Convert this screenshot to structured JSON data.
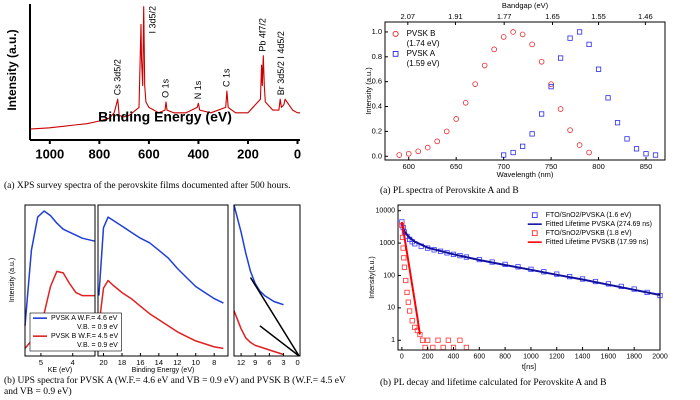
{
  "chart_data": [
    {
      "type": "line",
      "caption": "(a) XPS survey spectra of the perovskite films documented after 500 hours.",
      "x_label": "Binding Energy (eV)",
      "y_label": "Intensity (a.u.)",
      "xlim": [
        1080,
        -10
      ],
      "xticks": [
        1000,
        800,
        600,
        400,
        200,
        0
      ],
      "ylim": [
        0,
        100
      ],
      "x": [
        1080,
        1000,
        950,
        900,
        850,
        800,
        760,
        740,
        726,
        724,
        720,
        700,
        680,
        640,
        632,
        630,
        625,
        621,
        619,
        617,
        612,
        600,
        560,
        535,
        531,
        527,
        500,
        450,
        405,
        400,
        395,
        350,
        290,
        285,
        280,
        250,
        200,
        150,
        145,
        142,
        138,
        134,
        130,
        100,
        75,
        70,
        65,
        55,
        50,
        20,
        0,
        -10
      ],
      "series": [
        {
          "color": "#cc0000",
          "values": [
            8,
            9,
            10,
            11,
            12,
            14,
            16,
            20,
            30,
            26,
            18,
            17,
            18,
            24,
            85,
            60,
            40,
            98,
            70,
            40,
            28,
            24,
            20,
            22,
            28,
            22,
            20,
            20,
            24,
            27,
            22,
            20,
            24,
            36,
            24,
            20,
            20,
            30,
            55,
            40,
            62,
            40,
            28,
            22,
            22,
            30,
            24,
            26,
            30,
            22,
            20,
            20
          ]
        }
      ],
      "annotations": [
        {
          "text": "Cs 3d5/2",
          "x": 725
        },
        {
          "text": "I 3d5/2",
          "x": 619
        },
        {
          "text": "O 1s",
          "x": 531
        },
        {
          "text": "N 1s",
          "x": 400
        },
        {
          "text": "C 1s",
          "x": 285
        },
        {
          "text": "Pb 4f7/2",
          "x": 138
        },
        {
          "text": "Br 3d5/2 I 4d5/2",
          "x": 65
        }
      ]
    },
    {
      "type": "scatter",
      "caption": "(a) PL spectra of Perovskite A and B",
      "x_label": "Wavelength (nm)",
      "y_label": "Intensity (a.u.)",
      "x2_label": "Bandgap (eV)",
      "xlim": [
        575,
        870
      ],
      "xticks": [
        600,
        650,
        700,
        750,
        800,
        850
      ],
      "x2ticks": [
        2.07,
        1.91,
        1.77,
        1.65,
        1.55,
        1.46
      ],
      "ylim": [
        -0.03,
        1.08
      ],
      "yticks": [
        {
          "value": 0,
          "label": "0.0"
        },
        0.2,
        0.4,
        0.6,
        0.8,
        {
          "value": 1,
          "label": "1.0"
        }
      ],
      "legend": "upper left",
      "series": [
        {
          "name": "PVSK B",
          "note": "(1.74 eV)",
          "color": "#e8262a",
          "marker": "circle",
          "x": [
            590,
            600,
            610,
            620,
            630,
            640,
            650,
            660,
            670,
            680,
            690,
            700,
            710,
            720,
            730,
            740,
            750,
            760,
            770,
            780,
            790
          ],
          "values": [
            0.01,
            0.02,
            0.04,
            0.07,
            0.12,
            0.2,
            0.3,
            0.43,
            0.58,
            0.73,
            0.86,
            0.96,
            1.0,
            0.98,
            0.9,
            0.76,
            0.58,
            0.38,
            0.21,
            0.09,
            0.03
          ]
        },
        {
          "name": "PVSK A",
          "note": "(1.59 eV)",
          "color": "#2a2ae8",
          "marker": "square",
          "x": [
            700,
            710,
            720,
            730,
            740,
            750,
            760,
            770,
            780,
            790,
            800,
            810,
            820,
            830,
            840,
            850,
            860
          ],
          "values": [
            0.01,
            0.03,
            0.08,
            0.18,
            0.34,
            0.56,
            0.79,
            0.95,
            1.0,
            0.9,
            0.7,
            0.47,
            0.27,
            0.14,
            0.06,
            0.02,
            0.01
          ]
        }
      ]
    },
    {
      "type": "line",
      "caption": "(b) UPS spectra for PVSK A (W.F.= 4.6 eV and VB = 0.9 eV) and PVSK B (W.F.= 4.5 eV and VB = 0.9 eV)",
      "y_label": "Intensity (a.u.)",
      "legend": "lower left",
      "series": [
        {
          "name": "PVSK A W.F.= 4.6 eV",
          "note": "V.B. = 0.9 eV",
          "color": "#1f3fd6"
        },
        {
          "name": "PVSK B W.F.= 4.5 eV",
          "note": "V.B. = 0.9 eV",
          "color": "#e02020"
        }
      ],
      "panels": [
        {
          "x_label": "KE (eV)",
          "xlim": [
            5.5,
            3.3
          ],
          "xticks": [
            5,
            4
          ],
          "ylim": [
            0,
            100
          ],
          "x": [
            5.5,
            5.3,
            5.1,
            4.9,
            4.7,
            4.5,
            4.3,
            4.1,
            3.9,
            3.7,
            3.5,
            3.3
          ],
          "series": [
            {
              "values": [
                20,
                70,
                92,
                96,
                93,
                88,
                84,
                82,
                80,
                78,
                77,
                76
              ]
            },
            {
              "values": [
                5,
                10,
                16,
                28,
                46,
                56,
                55,
                48,
                42,
                40,
                40,
                40
              ]
            }
          ]
        },
        {
          "x_label": "Binding Energy (eV)",
          "xlim": [
            20.6,
            6.5
          ],
          "xticks": [
            20,
            18,
            16,
            14,
            12,
            10,
            8
          ],
          "ylim": [
            0,
            100
          ],
          "x": [
            20.5,
            20,
            19.5,
            19,
            18,
            17,
            16,
            15,
            14,
            13,
            12,
            11,
            10,
            9,
            8,
            7
          ],
          "series": [
            {
              "values": [
                40,
                85,
                92,
                90,
                86,
                82,
                78,
                75,
                70,
                65,
                58,
                52,
                46,
                42,
                38,
                35
              ]
            },
            {
              "values": [
                20,
                45,
                50,
                47,
                42,
                38,
                33,
                28,
                24,
                20,
                16,
                13,
                10,
                8,
                6,
                5
              ]
            }
          ]
        },
        {
          "xlim": [
            13.5,
            -0.5
          ],
          "xticks": [
            12,
            9,
            6,
            3,
            0
          ],
          "ylim": [
            0,
            100
          ],
          "x": [
            13.5,
            12,
            11,
            10,
            9,
            8,
            7,
            6,
            5,
            4,
            3
          ],
          "series": [
            {
              "values": [
                100,
                82,
                68,
                56,
                48,
                43,
                40,
                38,
                36,
                35,
                34
              ]
            },
            {
              "values": [
                30,
                18,
                12,
                9,
                7,
                6,
                5,
                4,
                3,
                2,
                1
              ]
            }
          ],
          "fit_color": "#000000",
          "fits": [
            {
              "x": [
                10,
                -0.3
              ],
              "values": [
                52,
                0
              ]
            },
            {
              "x": [
                8,
                -0.3
              ],
              "values": [
                20,
                0
              ]
            }
          ]
        }
      ]
    },
    {
      "type": "scatter",
      "caption": "(b) PL decay and lifetime calculated for Perovskite A and B",
      "x_label": "t[ns]",
      "y_label": "Intensity(a.u.)",
      "log_y": true,
      "legend": "upper right",
      "xlim": [
        -30,
        2000
      ],
      "xticks": [
        0,
        200,
        400,
        600,
        800,
        1000,
        1200,
        1400,
        1600,
        1800,
        2000
      ],
      "ylim": [
        0.5,
        15000
      ],
      "yticks": [
        1,
        10,
        100,
        1000,
        10000
      ],
      "series": [
        {
          "name": "FTO/SnO2/PVSKA (1.6 eV)",
          "color": "#3a3aff",
          "marker": "square",
          "x": [
            0,
            10,
            20,
            40,
            60,
            80,
            100,
            150,
            200,
            250,
            300,
            350,
            400,
            450,
            500,
            600,
            700,
            800,
            900,
            1000,
            1100,
            1200,
            1300,
            1400,
            1500,
            1600,
            1700,
            1800,
            1900,
            2000
          ],
          "values": [
            4500,
            3000,
            2200,
            1600,
            1300,
            1100,
            950,
            800,
            700,
            620,
            560,
            500,
            450,
            410,
            370,
            310,
            260,
            220,
            185,
            155,
            130,
            110,
            92,
            78,
            65,
            55,
            46,
            38,
            30,
            24
          ]
        },
        {
          "name": "Fitted Lifetime PVSKA (274.69 ns)",
          "color": "#1010a0",
          "mode": "line",
          "x": [
            0,
            20,
            50,
            100,
            200,
            400,
            600,
            800,
            1000,
            1200,
            1400,
            1600,
            1800,
            2000
          ],
          "values": [
            4000,
            2300,
            1600,
            1100,
            720,
            450,
            300,
            210,
            150,
            105,
            75,
            52,
            36,
            25
          ]
        },
        {
          "name": "FTO/SnO2/PVSKB (1.8 eV)",
          "color": "#ff3030",
          "marker": "square",
          "x": [
            0,
            5,
            10,
            15,
            20,
            30,
            40,
            50,
            60,
            80,
            100,
            120,
            140,
            160,
            180,
            200,
            240,
            280,
            320,
            360,
            400,
            450,
            500
          ],
          "values": [
            3500,
            1500,
            700,
            350,
            180,
            70,
            30,
            15,
            8,
            4,
            2.5,
            2,
            1.5,
            1,
            0.6,
            1,
            0.6,
            1,
            0.6,
            1,
            0.6,
            1,
            0.6
          ]
        },
        {
          "name": "Fitted Lifetime PVSKB (17.99 ns)",
          "color": "#ff0000",
          "mode": "line",
          "x": [
            0,
            20,
            40,
            60,
            80,
            100,
            120,
            140
          ],
          "values": [
            4500,
            1500,
            500,
            160,
            50,
            16,
            5,
            1.5
          ]
        }
      ]
    }
  ]
}
